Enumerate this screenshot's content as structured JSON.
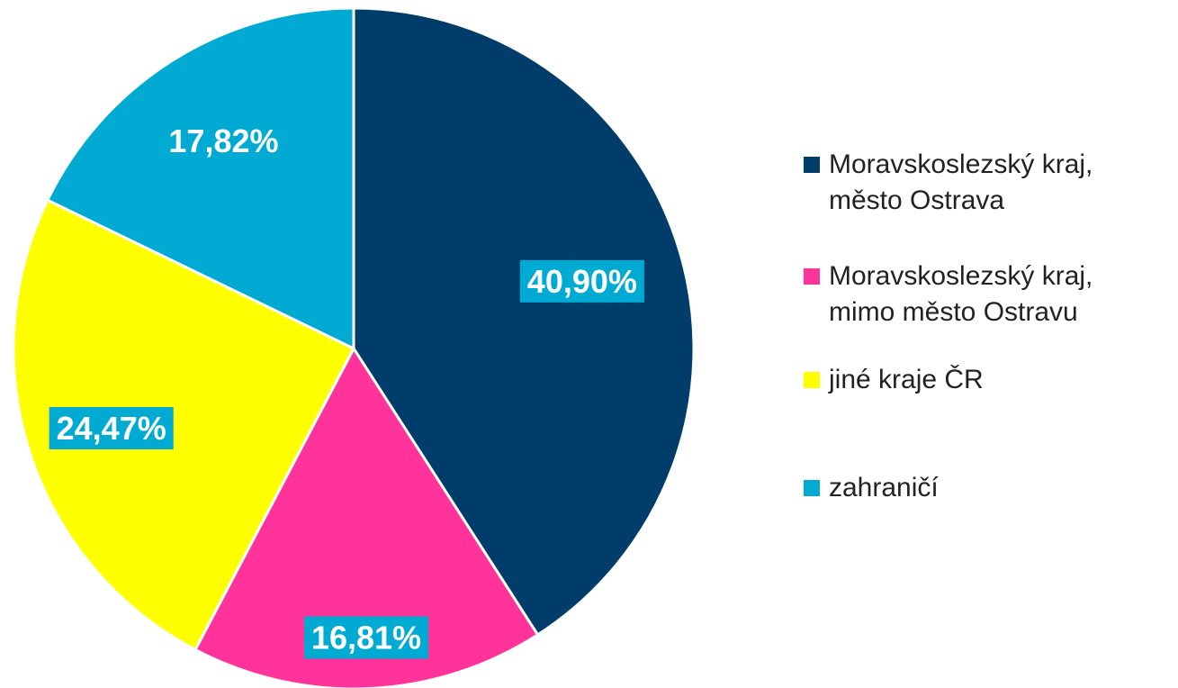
{
  "chart_data": {
    "type": "pie",
    "categories": [
      "Moravskoslezský kraj, město Ostrava",
      "Moravskoslezský kraj, mimo město Ostravu",
      "jiné kraje ČR",
      "zahraničí"
    ],
    "values": [
      40.9,
      16.81,
      24.47,
      17.82
    ],
    "value_labels": [
      "40,90%",
      "16,81%",
      "24,47%",
      "17,82%"
    ],
    "colors": [
      "#003d6a",
      "#ff3399",
      "#ffff00",
      "#00aad2"
    ],
    "legend": "right"
  }
}
